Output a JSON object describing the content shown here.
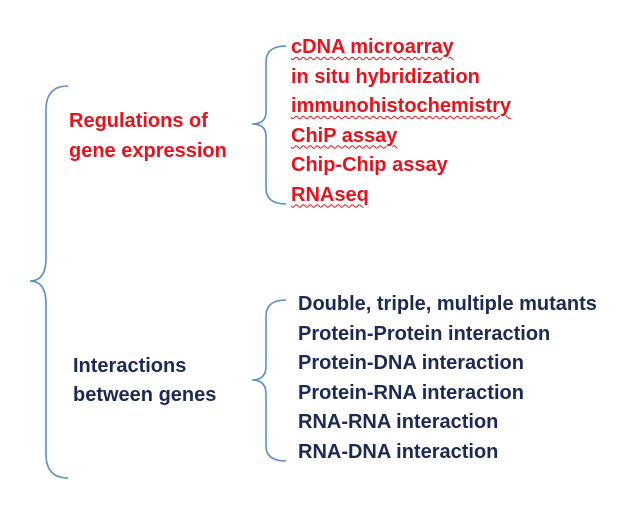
{
  "categories": [
    {
      "label_lines": [
        "Regulations of",
        "gene expression"
      ],
      "color": "#e8121c",
      "methods": [
        {
          "text": "cDNA microarray",
          "spellcheck_mark": true
        },
        {
          "text": "in situ hybridization",
          "spellcheck_mark": false
        },
        {
          "text": "immunohistochemistry",
          "spellcheck_mark": true
        },
        {
          "text": "ChiP assay",
          "spellcheck_mark": true
        },
        {
          "text": "Chip-Chip assay",
          "spellcheck_mark": false
        },
        {
          "text": "RNAseq",
          "spellcheck_mark": true
        }
      ]
    },
    {
      "label_lines": [
        "Interactions",
        "between  genes"
      ],
      "color": "#1b2a55",
      "methods": [
        {
          "text": "Double, triple, multiple mutants"
        },
        {
          "text": "Protein-Protein interaction"
        },
        {
          "text": "Protein-DNA interaction"
        },
        {
          "text": "Protein-RNA interaction"
        },
        {
          "text": "RNA-RNA interaction"
        },
        {
          "text": "RNA-DNA interaction"
        }
      ]
    }
  ],
  "brace_color": "#5b8fc7"
}
